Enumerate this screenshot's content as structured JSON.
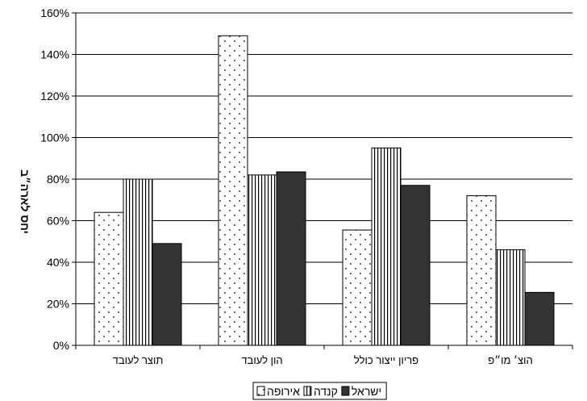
{
  "chart_data": {
    "type": "bar",
    "categories": [
      "תוצר לעובד",
      "הון לעובד",
      "פריון ייצור כולל",
      "הוצ׳ מו״פ"
    ],
    "series": [
      {
        "name": "אירופה",
        "values": [
          64,
          149,
          55.5,
          72
        ],
        "color": "#ffffff",
        "pattern": "dots"
      },
      {
        "name": "קנדה",
        "values": [
          80,
          82,
          95,
          46
        ],
        "color": "#ffffff",
        "pattern": "vertical-lines"
      },
      {
        "name": "ישראל",
        "values": [
          49,
          83.5,
          77,
          25.5
        ],
        "color": "#333333",
        "pattern": "solid"
      }
    ],
    "ylabel": "יחס לארה״ב",
    "xlabel": "",
    "ylim": [
      0,
      160
    ],
    "yticks": [
      "0%",
      "20%",
      "40%",
      "60%",
      "80%",
      "100%",
      "120%",
      "140%",
      "160%"
    ],
    "grid": true,
    "legend_position": "bottom"
  }
}
